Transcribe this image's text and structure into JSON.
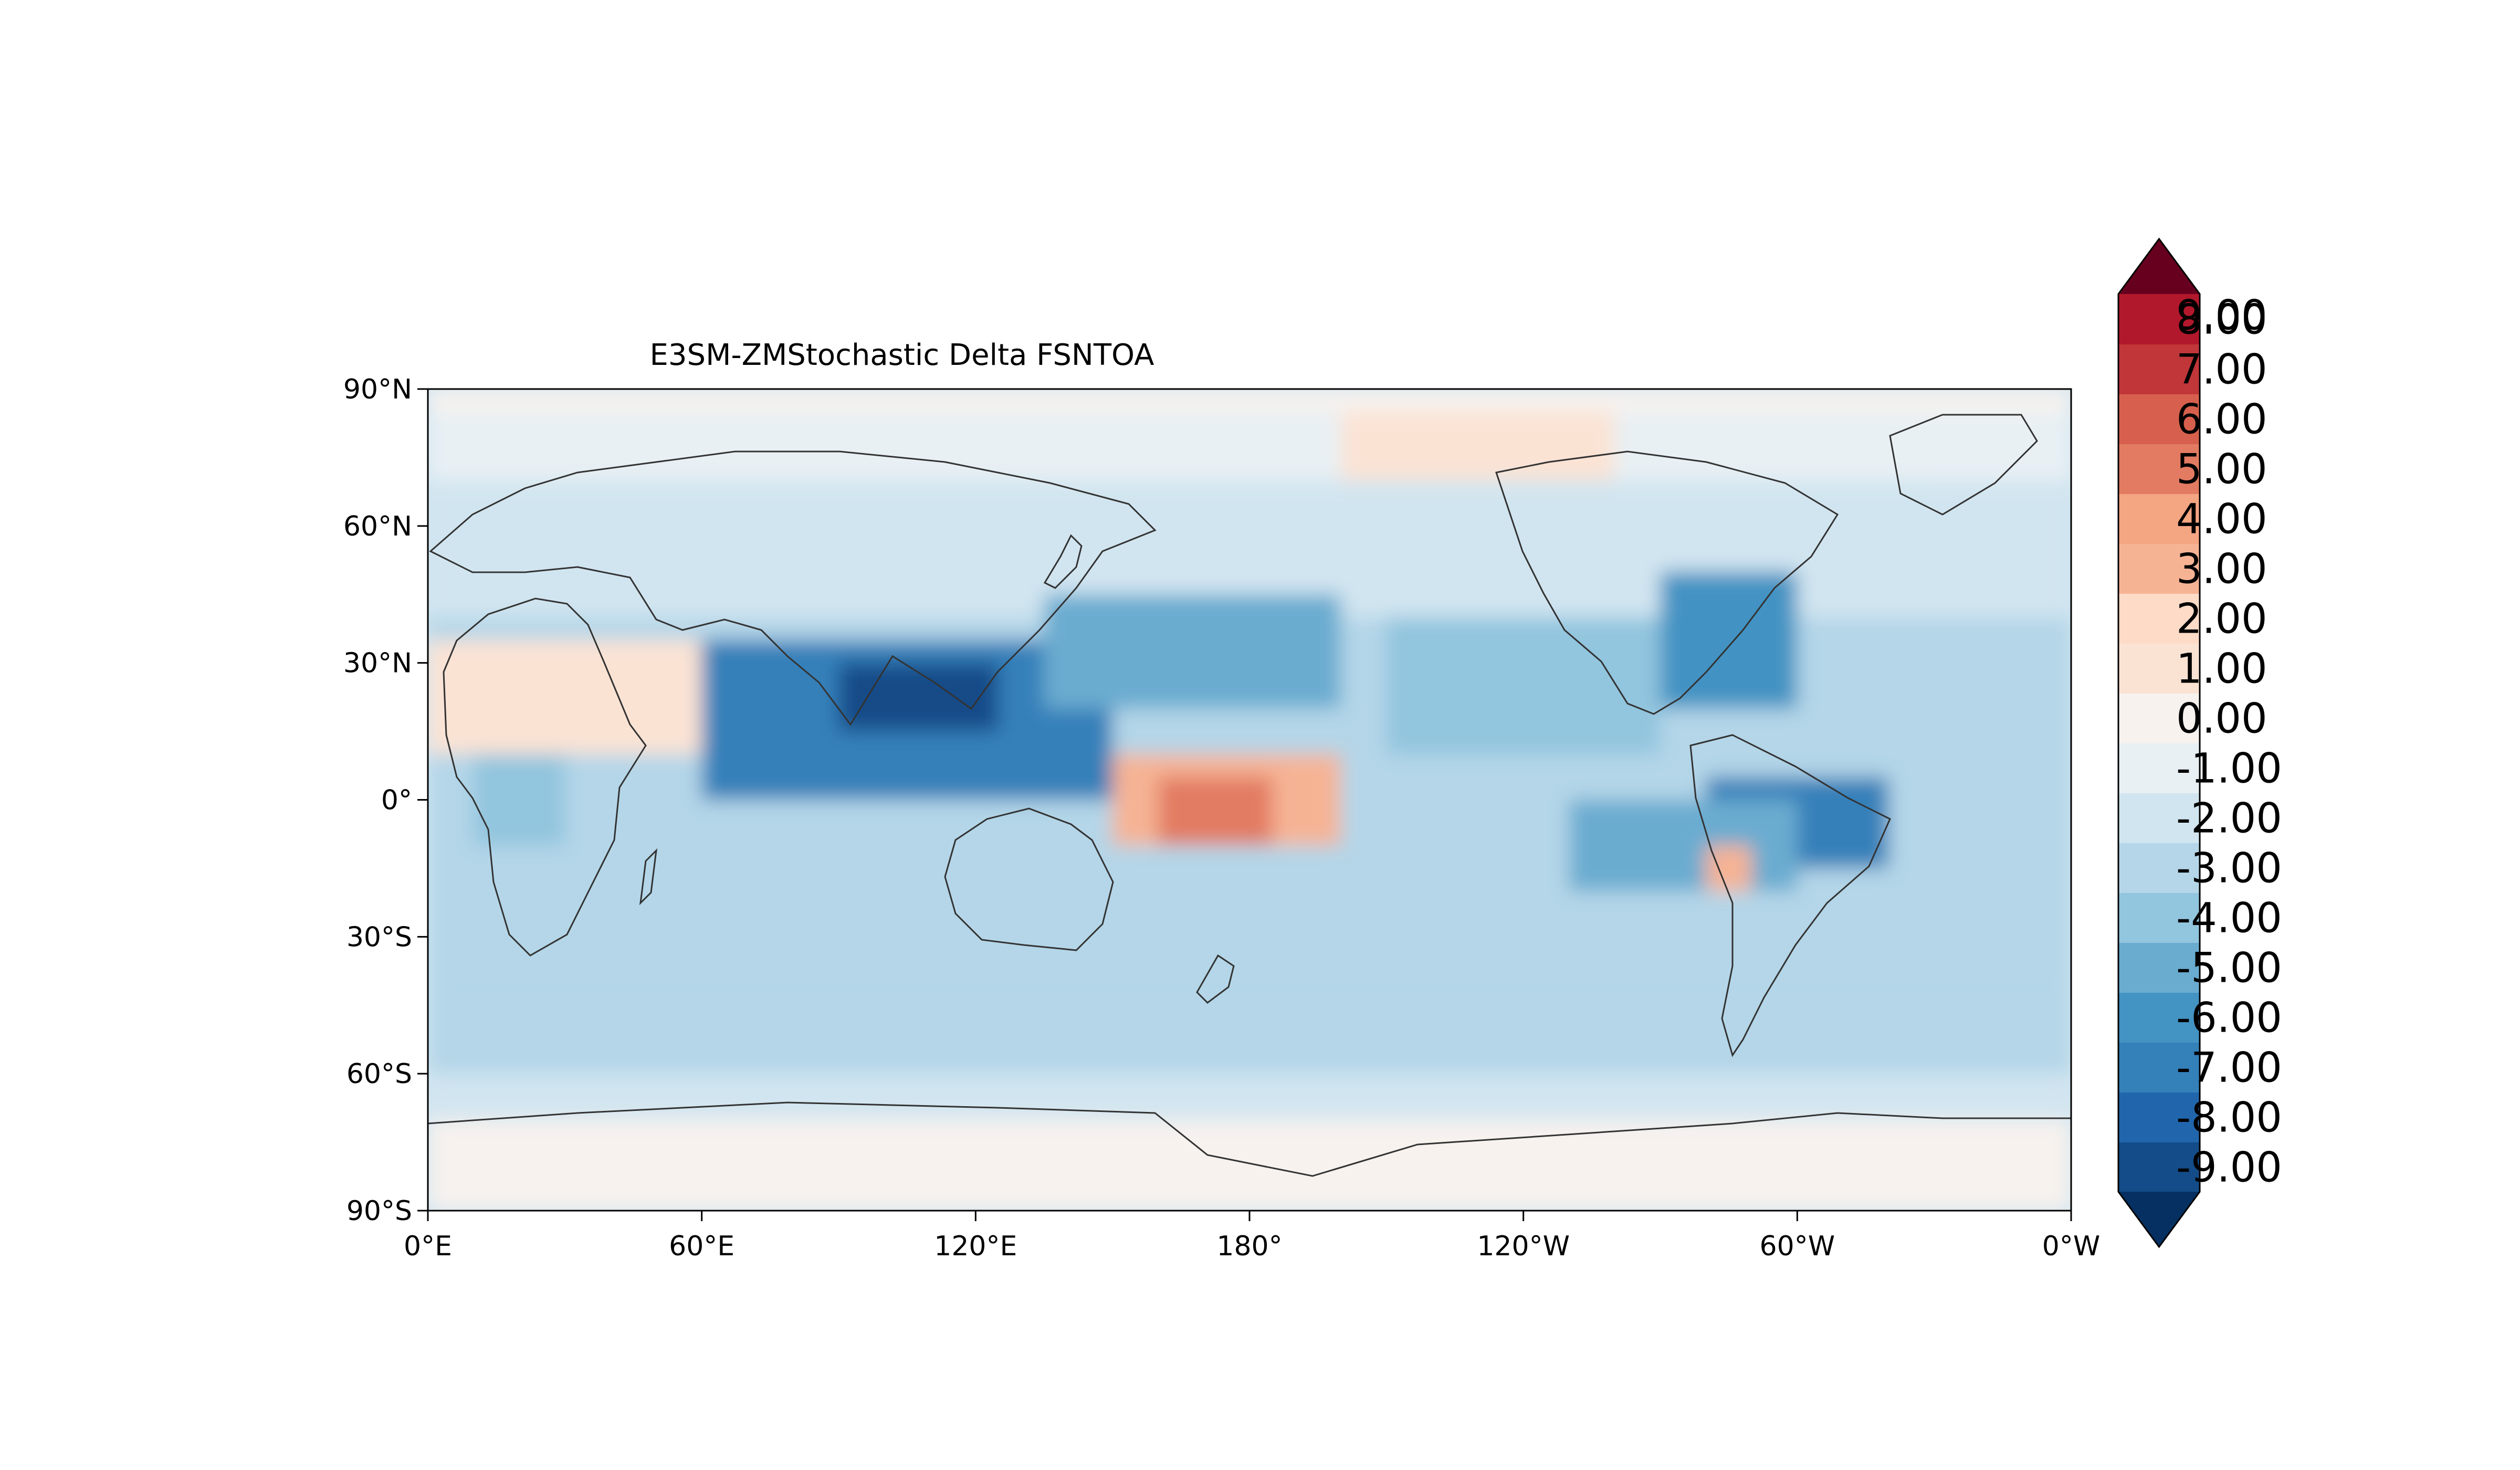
{
  "chart_data": {
    "type": "heatmap",
    "title": "E3SM-ZMStochastic Delta FSNTOA",
    "xlabel": "",
    "ylabel": "",
    "x_ticks": [
      "0°E",
      "60°E",
      "120°E",
      "180°",
      "120°W",
      "60°W",
      "0°W"
    ],
    "y_ticks": [
      "90°N",
      "60°N",
      "30°N",
      "0°",
      "30°S",
      "60°S",
      "90°S"
    ],
    "x_range": [
      0,
      360
    ],
    "y_range": [
      -90,
      90
    ],
    "colorbar": {
      "levels": [
        -9,
        -8,
        -7,
        -6,
        -5,
        -4,
        -3,
        -2,
        -1,
        0,
        1,
        2,
        3,
        4,
        5,
        6,
        7,
        8,
        9
      ],
      "tick_labels": [
        "-9.00",
        "-8.00",
        "-7.00",
        "-6.00",
        "-5.00",
        "-4.00",
        "-3.00",
        "-2.00",
        "-1.00",
        "0.00",
        "1.00",
        "2.00",
        "3.00",
        "4.00",
        "5.00",
        "6.00",
        "7.00",
        "8.00",
        "9.00"
      ],
      "extend": "both",
      "colors": [
        "#053061",
        "#134c88",
        "#2166ac",
        "#3480b9",
        "#4393c3",
        "#6aacd0",
        "#92c5de",
        "#b4d6e8",
        "#d1e5f0",
        "#e8f0f4",
        "#f7f2ee",
        "#fbe3d4",
        "#fddbc7",
        "#f6b394",
        "#f4a582",
        "#e27b62",
        "#d6604d",
        "#c13639",
        "#b2182b",
        "#8a0b25",
        "#67001f"
      ]
    },
    "regions": [
      {
        "lon": [
          330,
          360
        ],
        "lat": [
          60,
          85
        ],
        "value": 0.5
      },
      {
        "lon": [
          0,
          360
        ],
        "lat": [
          -90,
          -70
        ],
        "value": 0.5
      },
      {
        "lon": [
          0,
          360
        ],
        "lat": [
          -70,
          -60
        ],
        "value": -1.5
      },
      {
        "lon": [
          0,
          360
        ],
        "lat": [
          -60,
          -40
        ],
        "value": -2.5
      },
      {
        "lon": [
          0,
          360
        ],
        "lat": [
          -40,
          40
        ],
        "value": -2.5
      },
      {
        "lon": [
          0,
          360
        ],
        "lat": [
          40,
          70
        ],
        "value": -2.0
      },
      {
        "lon": [
          0,
          360
        ],
        "lat": [
          70,
          85
        ],
        "value": -0.5
      },
      {
        "lon": [
          0,
          360
        ],
        "lat": [
          85,
          90
        ],
        "value": 0.3
      },
      {
        "lon": [
          0,
          60
        ],
        "lat": [
          10,
          35
        ],
        "value": 1.5
      },
      {
        "lon": [
          60,
          150
        ],
        "lat": [
          0,
          35
        ],
        "value": -6.5
      },
      {
        "lon": [
          90,
          125
        ],
        "lat": [
          15,
          30
        ],
        "value": -8.5
      },
      {
        "lon": [
          150,
          200
        ],
        "lat": [
          -10,
          10
        ],
        "value": 3.5
      },
      {
        "lon": [
          160,
          185
        ],
        "lat": [
          -10,
          5
        ],
        "value": 5.5
      },
      {
        "lon": [
          270,
          300
        ],
        "lat": [
          20,
          50
        ],
        "value": -5.5
      },
      {
        "lon": [
          280,
          320
        ],
        "lat": [
          -15,
          5
        ],
        "value": -6.5
      },
      {
        "lon": [
          250,
          300
        ],
        "lat": [
          -20,
          0
        ],
        "value": -4.5
      },
      {
        "lon": [
          210,
          270
        ],
        "lat": [
          10,
          40
        ],
        "value": -3.5
      },
      {
        "lon": [
          135,
          200
        ],
        "lat": [
          20,
          45
        ],
        "value": -4.5
      },
      {
        "lon": [
          200,
          260
        ],
        "lat": [
          70,
          85
        ],
        "value": 1.0
      },
      {
        "lon": [
          10,
          30
        ],
        "lat": [
          -10,
          10
        ],
        "value": -4.0
      },
      {
        "lon": [
          280,
          290
        ],
        "lat": [
          -20,
          -10
        ],
        "value": 3.5
      }
    ]
  }
}
